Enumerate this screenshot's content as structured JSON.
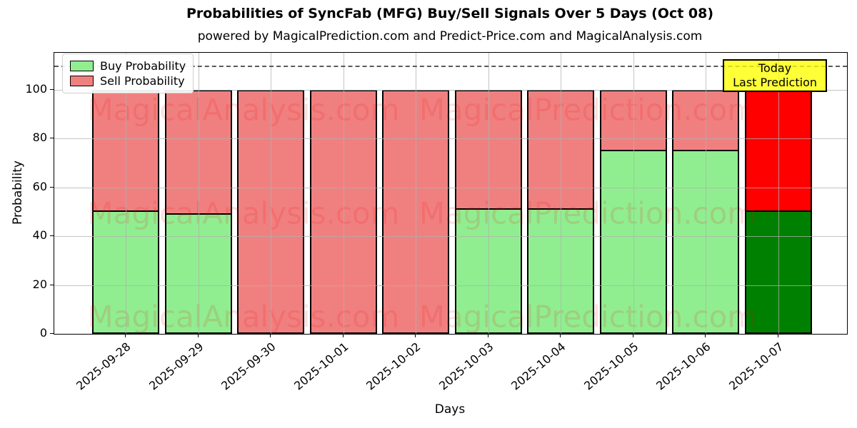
{
  "chart_data": {
    "type": "bar",
    "stacked": true,
    "title": "Probabilities of SyncFab (MFG) Buy/Sell Signals Over 5 Days (Oct 08)",
    "subtitle": "powered by MagicalPrediction.com and Predict-Price.com and MagicalAnalysis.com",
    "xlabel": "Days",
    "ylabel": "Probability",
    "categories": [
      "2025-09-28",
      "2025-09-29",
      "2025-09-30",
      "2025-10-01",
      "2025-10-02",
      "2025-10-03",
      "2025-10-04",
      "2025-10-05",
      "2025-10-06",
      "2025-10-07"
    ],
    "series": [
      {
        "name": "Buy Probability",
        "color": "#90EE90",
        "today_color": "#008000",
        "values": [
          50.5,
          49.5,
          0,
          0,
          0,
          51.5,
          51.5,
          75.5,
          75.5,
          50.5
        ]
      },
      {
        "name": "Sell Probability",
        "color": "#F08080",
        "today_color": "#FF0000",
        "values": [
          49.5,
          50.5,
          100,
          100,
          100,
          48.5,
          48.5,
          24.5,
          24.5,
          49.5
        ]
      }
    ],
    "bar_edge_color": "#000000",
    "yticks": [
      0,
      20,
      40,
      60,
      80,
      100
    ],
    "ylim": [
      0,
      115.2
    ],
    "grid": true,
    "legend_position": "upper left",
    "dashed_line_y": 110,
    "dashed_line_color": "#5a5a5a",
    "annotation": {
      "lines": [
        "Today",
        "Last Prediction"
      ],
      "bg_color": "#FFFF00"
    },
    "watermarks": {
      "left_text": "MagicalAnalysis.com",
      "right_text": "MagicalPrediction.com"
    }
  }
}
